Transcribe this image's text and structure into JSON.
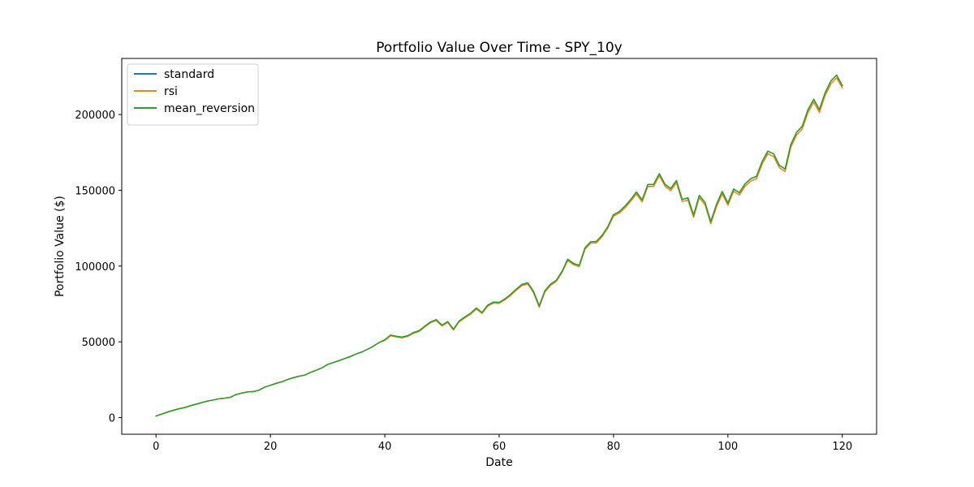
{
  "chart_data": {
    "type": "line",
    "title": "Portfolio Value Over Time - SPY_10y",
    "xlabel": "Date",
    "ylabel": "Portfolio Value ($)",
    "xlim": [
      -6,
      126
    ],
    "ylim": [
      -11000,
      237000
    ],
    "xticks": [
      0,
      20,
      40,
      60,
      80,
      100,
      120
    ],
    "yticks": [
      0,
      50000,
      100000,
      150000,
      200000
    ],
    "grid": false,
    "legend_position": "top-left",
    "x": [
      0,
      1,
      2,
      3,
      4,
      5,
      6,
      7,
      8,
      9,
      10,
      11,
      12,
      13,
      14,
      15,
      16,
      17,
      18,
      19,
      20,
      21,
      22,
      23,
      24,
      25,
      26,
      27,
      28,
      29,
      30,
      31,
      32,
      33,
      34,
      35,
      36,
      37,
      38,
      39,
      40,
      41,
      42,
      43,
      44,
      45,
      46,
      47,
      48,
      49,
      50,
      51,
      52,
      53,
      54,
      55,
      56,
      57,
      58,
      59,
      60,
      61,
      62,
      63,
      64,
      65,
      66,
      67,
      68,
      69,
      70,
      71,
      72,
      73,
      74,
      75,
      76,
      77,
      78,
      79,
      80,
      81,
      82,
      83,
      84,
      85,
      86,
      87,
      88,
      89,
      90,
      91,
      92,
      93,
      94,
      95,
      96,
      97,
      98,
      99,
      100,
      101,
      102,
      103,
      104,
      105,
      106,
      107,
      108,
      109,
      110,
      111,
      112,
      113,
      114,
      115,
      116,
      117,
      118,
      119,
      120
    ],
    "series": [
      {
        "name": "standard",
        "color": "#1f77b4",
        "values": [
          1000,
          2300,
          3600,
          4800,
          5800,
          6600,
          7800,
          8800,
          9900,
          10900,
          11600,
          12400,
          12800,
          13400,
          15200,
          16200,
          16900,
          17100,
          18100,
          20100,
          21300,
          22600,
          23600,
          25100,
          26300,
          27300,
          28000,
          29800,
          31200,
          32800,
          35000,
          36300,
          37600,
          39000,
          40300,
          42000,
          43300,
          45100,
          47100,
          49500,
          51300,
          54400,
          53600,
          53100,
          54000,
          56100,
          57300,
          60300,
          63100,
          64600,
          61000,
          63300,
          58300,
          63700,
          66400,
          68800,
          72300,
          69300,
          74200,
          76200,
          76000,
          78300,
          81300,
          84800,
          87900,
          88900,
          83300,
          73600,
          83700,
          88100,
          90600,
          96500,
          104500,
          101700,
          100400,
          111900,
          116000,
          116200,
          120300,
          126000,
          133900,
          135900,
          139500,
          143900,
          148800,
          143600,
          153800,
          153800,
          160900,
          154000,
          151100,
          156400,
          143900,
          145000,
          133600,
          146600,
          141900,
          129200,
          140600,
          149200,
          141600,
          150800,
          148400,
          154200,
          157600,
          159200,
          169100,
          175800,
          174000,
          166400,
          164000,
          180100,
          188200,
          192300,
          203100,
          210100,
          203200,
          214300,
          222100,
          226000,
          219000
        ]
      },
      {
        "name": "rsi",
        "color": "#ff7f0e",
        "values": [
          1000,
          2300,
          3600,
          4800,
          5800,
          6600,
          7800,
          8800,
          9900,
          10900,
          11600,
          12400,
          12800,
          13400,
          15200,
          16200,
          16900,
          17100,
          18100,
          20100,
          21300,
          22600,
          23600,
          25100,
          26300,
          27300,
          28000,
          29800,
          31200,
          32800,
          35000,
          36300,
          37600,
          39000,
          40300,
          42000,
          43300,
          45100,
          47100,
          49500,
          50900,
          54000,
          53200,
          52600,
          53500,
          55600,
          56800,
          59800,
          62600,
          64000,
          60400,
          62800,
          57800,
          63200,
          65800,
          68200,
          71700,
          68700,
          73500,
          75600,
          75400,
          77700,
          80600,
          84100,
          87100,
          88100,
          82500,
          72800,
          82900,
          87300,
          89900,
          95800,
          103700,
          100900,
          99600,
          111000,
          115100,
          115300,
          119300,
          125100,
          132900,
          134900,
          138400,
          142700,
          147600,
          142300,
          152500,
          152500,
          159600,
          152700,
          149700,
          155000,
          142600,
          143500,
          132200,
          145100,
          140400,
          127900,
          139100,
          147600,
          140100,
          149300,
          146900,
          152600,
          156000,
          157600,
          167400,
          174100,
          172300,
          164800,
          162400,
          178400,
          186400,
          190500,
          201200,
          208200,
          201400,
          212500,
          220200,
          224200,
          217500
        ]
      },
      {
        "name": "mean_reversion",
        "color": "#2ca02c",
        "values": [
          1000,
          2300,
          3600,
          4800,
          5800,
          6600,
          7800,
          8800,
          9900,
          10900,
          11600,
          12400,
          12800,
          13400,
          15200,
          16200,
          16900,
          17100,
          18100,
          20100,
          21300,
          22600,
          23600,
          25100,
          26300,
          27300,
          28000,
          29800,
          31200,
          32800,
          35000,
          36300,
          37600,
          39000,
          40300,
          42000,
          43300,
          45100,
          47100,
          49500,
          51300,
          54400,
          53600,
          53100,
          54000,
          56100,
          57300,
          60300,
          63100,
          64600,
          61000,
          63300,
          58300,
          63700,
          66400,
          68800,
          72300,
          69300,
          74200,
          76200,
          76000,
          78300,
          81300,
          84800,
          87900,
          88900,
          83300,
          73600,
          83700,
          88100,
          90600,
          96500,
          104500,
          101700,
          100400,
          111900,
          116000,
          116200,
          120300,
          126000,
          133900,
          135900,
          139500,
          143900,
          148800,
          143600,
          153800,
          153800,
          160900,
          154000,
          151100,
          156400,
          143900,
          145000,
          133600,
          146600,
          141900,
          129200,
          140600,
          149200,
          141600,
          150800,
          148400,
          154200,
          157600,
          159200,
          169100,
          175800,
          174000,
          166400,
          164000,
          180100,
          188200,
          192300,
          203100,
          210100,
          203200,
          214300,
          222100,
          226000,
          219000
        ]
      }
    ]
  }
}
